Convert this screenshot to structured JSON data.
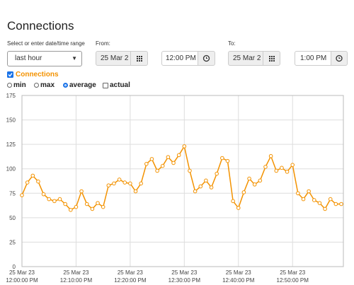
{
  "ui": {
    "title": "Connections",
    "range_label": "Select or enter date/time range",
    "range_select": "last hour",
    "from_label": "From:",
    "from_date": "25 Mar 2",
    "from_time": "12:00 PM",
    "to_label": "To:",
    "to_date": "25 Mar 2",
    "to_time": "1:00 PM",
    "options": [
      "min",
      "max",
      "average",
      "actual"
    ]
  },
  "chart_data": {
    "type": "line",
    "series": [
      {
        "name": "Connections",
        "color": "#f39200",
        "values": [
          73,
          86,
          93,
          87,
          74,
          69,
          67,
          69,
          64,
          58,
          61,
          77,
          64,
          59,
          65,
          61,
          83,
          85,
          89,
          86,
          85,
          77,
          85,
          105,
          110,
          98,
          103,
          112,
          106,
          114,
          123,
          98,
          77,
          82,
          88,
          81,
          95,
          111,
          108,
          67,
          60,
          76,
          90,
          84,
          88,
          102,
          113,
          98,
          101,
          97,
          104,
          75,
          69,
          77,
          68,
          65,
          59,
          69,
          64,
          64
        ]
      }
    ],
    "x": [
      "25 Mar 23 12:00:00 PM",
      "25 Mar 23 12:01:00 PM",
      "25 Mar 23 12:02:00 PM",
      "25 Mar 23 12:03:00 PM",
      "25 Mar 23 12:04:00 PM",
      "25 Mar 23 12:05:00 PM",
      "25 Mar 23 12:06:00 PM",
      "25 Mar 23 12:07:00 PM",
      "25 Mar 23 12:08:00 PM",
      "25 Mar 23 12:09:00 PM",
      "25 Mar 23 12:10:00 PM",
      "25 Mar 23 12:11:00 PM",
      "25 Mar 23 12:12:00 PM",
      "25 Mar 23 12:13:00 PM",
      "25 Mar 23 12:14:00 PM",
      "25 Mar 23 12:15:00 PM",
      "25 Mar 23 12:16:00 PM",
      "25 Mar 23 12:17:00 PM",
      "25 Mar 23 12:18:00 PM",
      "25 Mar 23 12:19:00 PM",
      "25 Mar 23 12:20:00 PM",
      "25 Mar 23 12:21:00 PM",
      "25 Mar 23 12:22:00 PM",
      "25 Mar 23 12:23:00 PM",
      "25 Mar 23 12:24:00 PM",
      "25 Mar 23 12:25:00 PM",
      "25 Mar 23 12:26:00 PM",
      "25 Mar 23 12:27:00 PM",
      "25 Mar 23 12:28:00 PM",
      "25 Mar 23 12:29:00 PM",
      "25 Mar 23 12:30:00 PM",
      "25 Mar 23 12:31:00 PM",
      "25 Mar 23 12:32:00 PM",
      "25 Mar 23 12:33:00 PM",
      "25 Mar 23 12:34:00 PM",
      "25 Mar 23 12:35:00 PM",
      "25 Mar 23 12:36:00 PM",
      "25 Mar 23 12:37:00 PM",
      "25 Mar 23 12:38:00 PM",
      "25 Mar 23 12:39:00 PM",
      "25 Mar 23 12:40:00 PM",
      "25 Mar 23 12:41:00 PM",
      "25 Mar 23 12:42:00 PM",
      "25 Mar 23 12:43:00 PM",
      "25 Mar 23 12:44:00 PM",
      "25 Mar 23 12:45:00 PM",
      "25 Mar 23 12:46:00 PM",
      "25 Mar 23 12:47:00 PM",
      "25 Mar 23 12:48:00 PM",
      "25 Mar 23 12:49:00 PM",
      "25 Mar 23 12:50:00 PM",
      "25 Mar 23 12:51:00 PM",
      "25 Mar 23 12:52:00 PM",
      "25 Mar 23 12:53:00 PM",
      "25 Mar 23 12:54:00 PM",
      "25 Mar 23 12:55:00 PM",
      "25 Mar 23 12:56:00 PM",
      "25 Mar 23 12:57:00 PM",
      "25 Mar 23 12:58:00 PM",
      "25 Mar 23 12:59:00 PM"
    ],
    "xlim": [
      "25 Mar 23 12:00:00 PM",
      "25 Mar 23 12:59:00 PM"
    ],
    "xticks": [
      {
        "value": "25 Mar 23 12:00:00 PM",
        "label": "25 Mar 23\n12:00:00 PM"
      },
      {
        "value": "25 Mar 23 12:10:00 PM",
        "label": "25 Mar 23\n12:10:00 PM"
      },
      {
        "value": "25 Mar 23 12:20:00 PM",
        "label": "25 Mar 23\n12:20:00 PM"
      },
      {
        "value": "25 Mar 23 12:30:00 PM",
        "label": "25 Mar 23\n12:30:00 PM"
      },
      {
        "value": "25 Mar 23 12:40:00 PM",
        "label": "25 Mar 23\n12:40:00 PM"
      },
      {
        "value": "25 Mar 23 12:50:00 PM",
        "label": "25 Mar 23\n12:50:00 PM"
      }
    ],
    "ylim": [
      0,
      175
    ],
    "yticks": [
      0,
      25,
      50,
      75,
      100,
      125,
      150,
      175
    ],
    "grid": true
  }
}
